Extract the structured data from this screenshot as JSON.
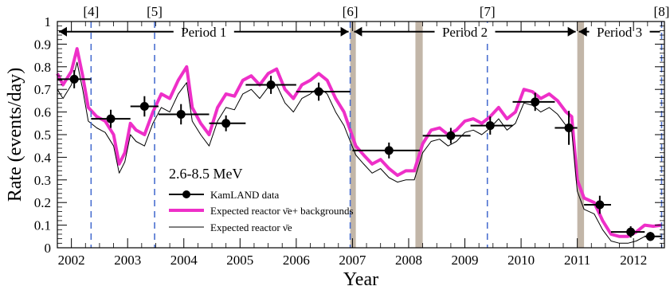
{
  "chart_data": {
    "type": "line",
    "xlabel": "Year",
    "ylabel": "Rate (events/day)",
    "xlim": [
      2001.75,
      2012.55
    ],
    "ylim": [
      0,
      1
    ],
    "x_ticks": [
      2002,
      2003,
      2004,
      2005,
      2006,
      2007,
      2008,
      2009,
      2010,
      2011,
      2012
    ],
    "y_ticks": [
      0,
      0.1,
      0.2,
      0.3,
      0.4,
      0.5,
      0.6,
      0.7,
      0.8,
      0.9,
      1
    ],
    "grid": false,
    "energy_label": "2.6-8.5 MeV",
    "references": [
      {
        "label": "[4]",
        "x": 2002.35
      },
      {
        "label": "[5]",
        "x": 2003.48
      },
      {
        "label": "[6]",
        "x": 2006.96
      },
      {
        "label": "[7]",
        "x": 2009.4
      },
      {
        "label": "[8]",
        "x": 2012.5
      }
    ],
    "periods": [
      {
        "label": "Period 1",
        "x_start": 2001.75,
        "x_end": 2006.96
      },
      {
        "label": "Period 2",
        "x_start": 2007.0,
        "x_end": 2011.0
      },
      {
        "label": "Period 3",
        "x_start": 2011.0,
        "x_end": 2012.5
      }
    ],
    "shaded_bands": [
      {
        "x_start": 2006.96,
        "x_end": 2007.06
      },
      {
        "x_start": 2008.12,
        "x_end": 2008.25
      },
      {
        "x_start": 2011.0,
        "x_end": 2011.12
      }
    ],
    "legend": [
      {
        "label": "KamLAND data",
        "style": "marker-line"
      },
      {
        "label": "Expected reactor ν̄e+ backgrounds",
        "style": "thick-line"
      },
      {
        "label": "Expected reactor ν̄e",
        "style": "thin-line"
      }
    ],
    "series": [
      {
        "name": "KamLAND data",
        "points": [
          {
            "x": 2002.05,
            "y": 0.745,
            "xerr": [
              2001.75,
              2002.35
            ],
            "yerr": 0.04
          },
          {
            "x": 2002.7,
            "y": 0.57,
            "xerr": [
              2002.35,
              2003.05
            ],
            "yerr": 0.04
          },
          {
            "x": 2003.3,
            "y": 0.625,
            "xerr": [
              2003.05,
              2003.55
            ],
            "yerr": 0.045
          },
          {
            "x": 2003.95,
            "y": 0.59,
            "xerr": [
              2003.55,
              2004.45
            ],
            "yerr": 0.045
          },
          {
            "x": 2004.75,
            "y": 0.55,
            "xerr": [
              2004.45,
              2005.1
            ],
            "yerr": 0.035
          },
          {
            "x": 2005.55,
            "y": 0.72,
            "xerr": [
              2005.1,
              2006.0
            ],
            "yerr": 0.04
          },
          {
            "x": 2006.4,
            "y": 0.69,
            "xerr": [
              2006.0,
              2006.96
            ],
            "yerr": 0.04
          },
          {
            "x": 2007.65,
            "y": 0.43,
            "xerr": [
              2007.0,
              2008.2
            ],
            "yerr": 0.035
          },
          {
            "x": 2008.75,
            "y": 0.495,
            "xerr": [
              2008.25,
              2009.1
            ],
            "yerr": 0.035
          },
          {
            "x": 2009.45,
            "y": 0.54,
            "xerr": [
              2009.1,
              2009.85
            ],
            "yerr": 0.04
          },
          {
            "x": 2010.25,
            "y": 0.645,
            "xerr": [
              2009.85,
              2010.6
            ],
            "yerr": 0.04
          },
          {
            "x": 2010.85,
            "y": 0.53,
            "xerr": [
              2010.6,
              2011.0
            ],
            "yerr": 0.075
          },
          {
            "x": 2011.4,
            "y": 0.19,
            "xerr": [
              2011.12,
              2011.6
            ],
            "yerr": 0.04
          },
          {
            "x": 2011.95,
            "y": 0.07,
            "xerr": [
              2011.6,
              2012.2
            ],
            "yerr": 0.025
          },
          {
            "x": 2012.3,
            "y": 0.05,
            "xerr": [
              2012.2,
              2012.5
            ],
            "yerr": 0.02
          }
        ]
      },
      {
        "name": "Expected reactor ν̄e+ backgrounds",
        "x": [
          2001.75,
          2001.85,
          2002.0,
          2002.1,
          2002.2,
          2002.3,
          2002.45,
          2002.6,
          2002.75,
          2002.85,
          2002.95,
          2003.05,
          2003.15,
          2003.3,
          2003.45,
          2003.6,
          2003.75,
          2003.9,
          2004.05,
          2004.15,
          2004.3,
          2004.45,
          2004.6,
          2004.75,
          2004.9,
          2005.05,
          2005.2,
          2005.35,
          2005.5,
          2005.65,
          2005.8,
          2005.95,
          2006.1,
          2006.25,
          2006.4,
          2006.55,
          2006.7,
          2006.85,
          2006.96,
          2007.06,
          2007.2,
          2007.35,
          2007.5,
          2007.65,
          2007.8,
          2007.95,
          2008.1,
          2008.25,
          2008.4,
          2008.55,
          2008.7,
          2008.85,
          2009.0,
          2009.15,
          2009.3,
          2009.45,
          2009.6,
          2009.75,
          2009.9,
          2010.05,
          2010.2,
          2010.35,
          2010.5,
          2010.65,
          2010.8,
          2010.9,
          2011.0,
          2011.12,
          2011.3,
          2011.45,
          2011.6,
          2011.75,
          2011.9,
          2012.05,
          2012.2,
          2012.35,
          2012.5
        ],
        "y": [
          0.77,
          0.72,
          0.78,
          0.88,
          0.76,
          0.62,
          0.58,
          0.56,
          0.5,
          0.37,
          0.42,
          0.55,
          0.52,
          0.5,
          0.6,
          0.68,
          0.66,
          0.74,
          0.8,
          0.62,
          0.55,
          0.5,
          0.62,
          0.68,
          0.67,
          0.74,
          0.76,
          0.72,
          0.77,
          0.79,
          0.7,
          0.66,
          0.72,
          0.74,
          0.77,
          0.74,
          0.66,
          0.6,
          0.52,
          0.45,
          0.41,
          0.37,
          0.39,
          0.35,
          0.32,
          0.34,
          0.34,
          0.46,
          0.52,
          0.53,
          0.5,
          0.52,
          0.56,
          0.57,
          0.55,
          0.58,
          0.62,
          0.57,
          0.6,
          0.7,
          0.69,
          0.66,
          0.68,
          0.65,
          0.6,
          0.58,
          0.3,
          0.22,
          0.2,
          0.12,
          0.06,
          0.05,
          0.05,
          0.07,
          0.1,
          0.095,
          0.1
        ]
      },
      {
        "name": "Expected reactor ν̄e",
        "x": [
          2001.75,
          2001.85,
          2002.0,
          2002.1,
          2002.2,
          2002.3,
          2002.45,
          2002.6,
          2002.75,
          2002.85,
          2002.95,
          2003.05,
          2003.15,
          2003.3,
          2003.45,
          2003.6,
          2003.75,
          2003.9,
          2004.05,
          2004.15,
          2004.3,
          2004.45,
          2004.6,
          2004.75,
          2004.9,
          2005.05,
          2005.2,
          2005.35,
          2005.5,
          2005.65,
          2005.8,
          2005.95,
          2006.1,
          2006.25,
          2006.4,
          2006.55,
          2006.7,
          2006.85,
          2006.96,
          2007.06,
          2007.2,
          2007.35,
          2007.5,
          2007.65,
          2007.8,
          2007.95,
          2008.1,
          2008.25,
          2008.4,
          2008.55,
          2008.7,
          2008.85,
          2009.0,
          2009.15,
          2009.3,
          2009.45,
          2009.6,
          2009.75,
          2009.9,
          2010.05,
          2010.2,
          2010.35,
          2010.5,
          2010.65,
          2010.8,
          2010.9,
          2011.0,
          2011.12,
          2011.3,
          2011.45,
          2011.6,
          2011.75,
          2011.9,
          2012.05,
          2012.2,
          2012.35,
          2012.5
        ],
        "y": [
          0.7,
          0.66,
          0.72,
          0.82,
          0.7,
          0.56,
          0.53,
          0.51,
          0.45,
          0.33,
          0.38,
          0.5,
          0.47,
          0.45,
          0.55,
          0.62,
          0.6,
          0.68,
          0.73,
          0.56,
          0.5,
          0.45,
          0.56,
          0.62,
          0.61,
          0.68,
          0.7,
          0.66,
          0.71,
          0.72,
          0.64,
          0.6,
          0.66,
          0.68,
          0.71,
          0.68,
          0.6,
          0.54,
          0.47,
          0.41,
          0.37,
          0.33,
          0.35,
          0.31,
          0.29,
          0.3,
          0.3,
          0.42,
          0.47,
          0.48,
          0.45,
          0.47,
          0.51,
          0.52,
          0.5,
          0.53,
          0.57,
          0.52,
          0.55,
          0.64,
          0.63,
          0.6,
          0.62,
          0.59,
          0.54,
          0.52,
          0.25,
          0.17,
          0.15,
          0.08,
          0.03,
          0.02,
          0.02,
          0.03,
          0.05,
          0.05,
          0.05
        ]
      }
    ]
  }
}
